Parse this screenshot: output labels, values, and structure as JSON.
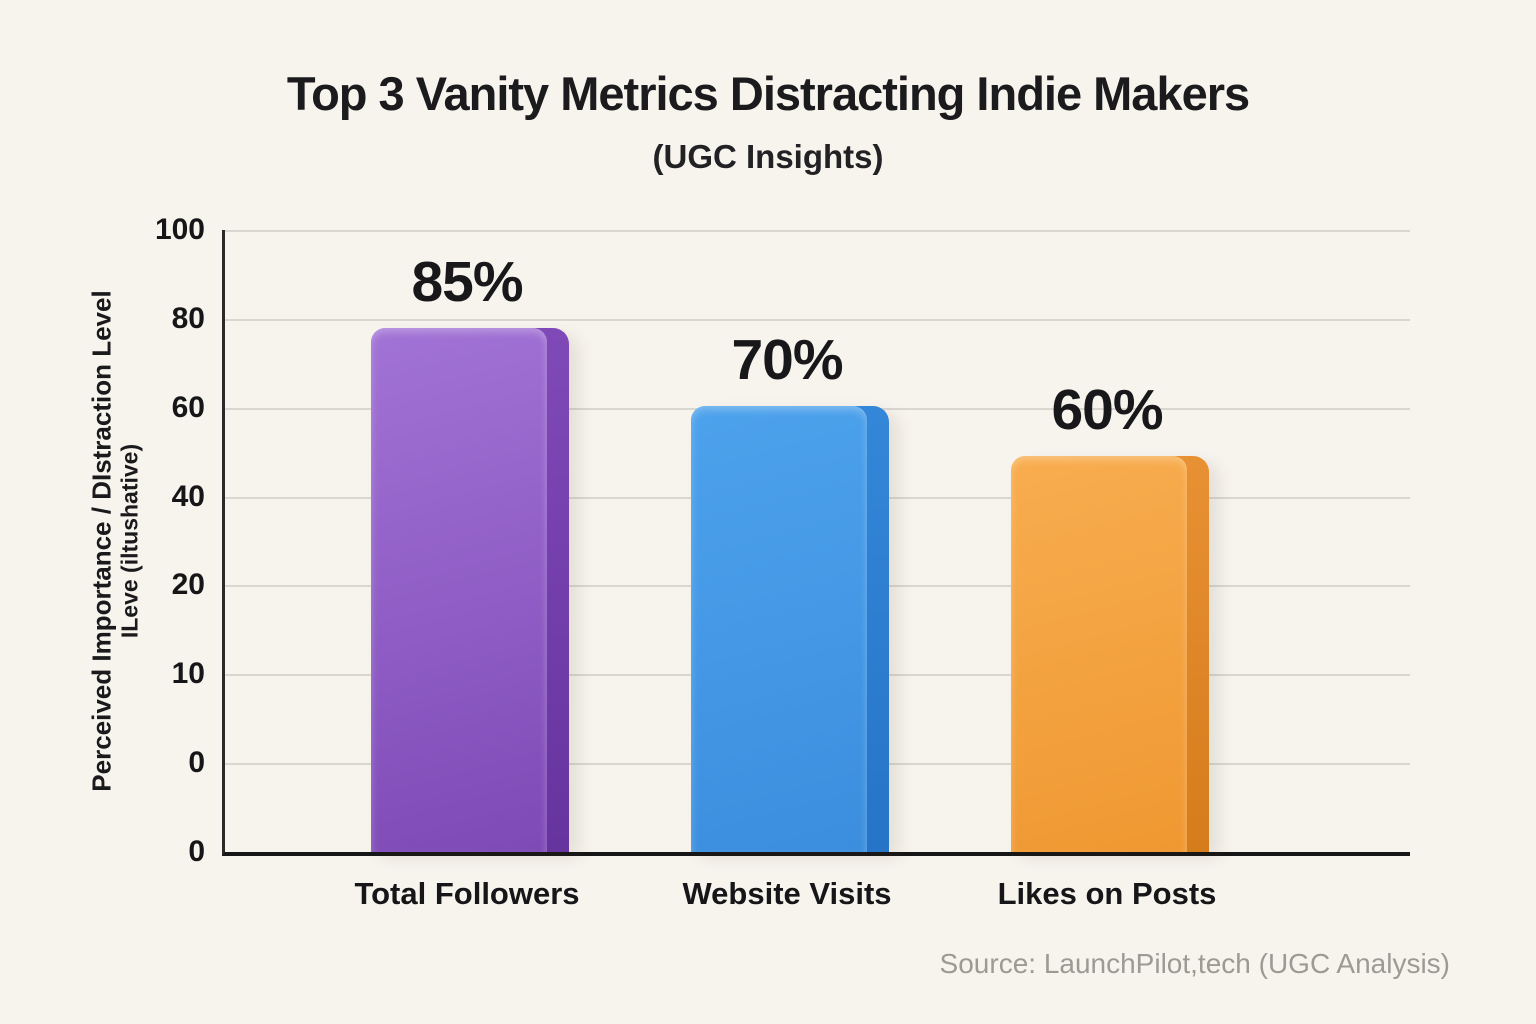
{
  "page": {
    "background_color": "#f7f4ee",
    "gridline_color": "#dad7d1",
    "axis_color": "#171717",
    "text_color": "#1a1a1c",
    "source_text_color": "#9d9a94"
  },
  "chart_data": {
    "type": "bar",
    "title": "Top 3 Vanity Metrics Distracting Indie Makers",
    "subtitle": "(UGC Insights)",
    "categories": [
      "Total Followers",
      "Website Visits",
      "Likes on Posts"
    ],
    "values": [
      85,
      70,
      60
    ],
    "value_labels": [
      "85%",
      "70%",
      "60%"
    ],
    "y_axis_label_line1": "Perceived Importance / DIstraction Level",
    "y_axis_label_line2": "ILeve (iltushative)",
    "y_tick_labels": [
      "100",
      "80",
      "60",
      "40",
      "20",
      "10",
      "0",
      "0"
    ],
    "ylim": [
      0,
      100
    ],
    "grid": true,
    "legend_position": "none",
    "drawn_top_fractions": [
      0.842,
      0.717,
      0.637
    ],
    "bar_styles": [
      {
        "name": "purple",
        "main_top": "#a273d6",
        "main_bottom": "#7e4ab6",
        "edge_top": "#8049b8",
        "edge_bottom": "#66349e"
      },
      {
        "name": "blue",
        "main_top": "#4da2ec",
        "main_bottom": "#3b8ede",
        "edge_top": "#3487d8",
        "edge_bottom": "#2674c8"
      },
      {
        "name": "orange",
        "main_top": "#f8ad4f",
        "main_bottom": "#ef9832",
        "edge_top": "#e89134",
        "edge_bottom": "#d57c1c"
      }
    ],
    "source": "Source: LaunchPilot,tech (UGC Analysis)"
  }
}
